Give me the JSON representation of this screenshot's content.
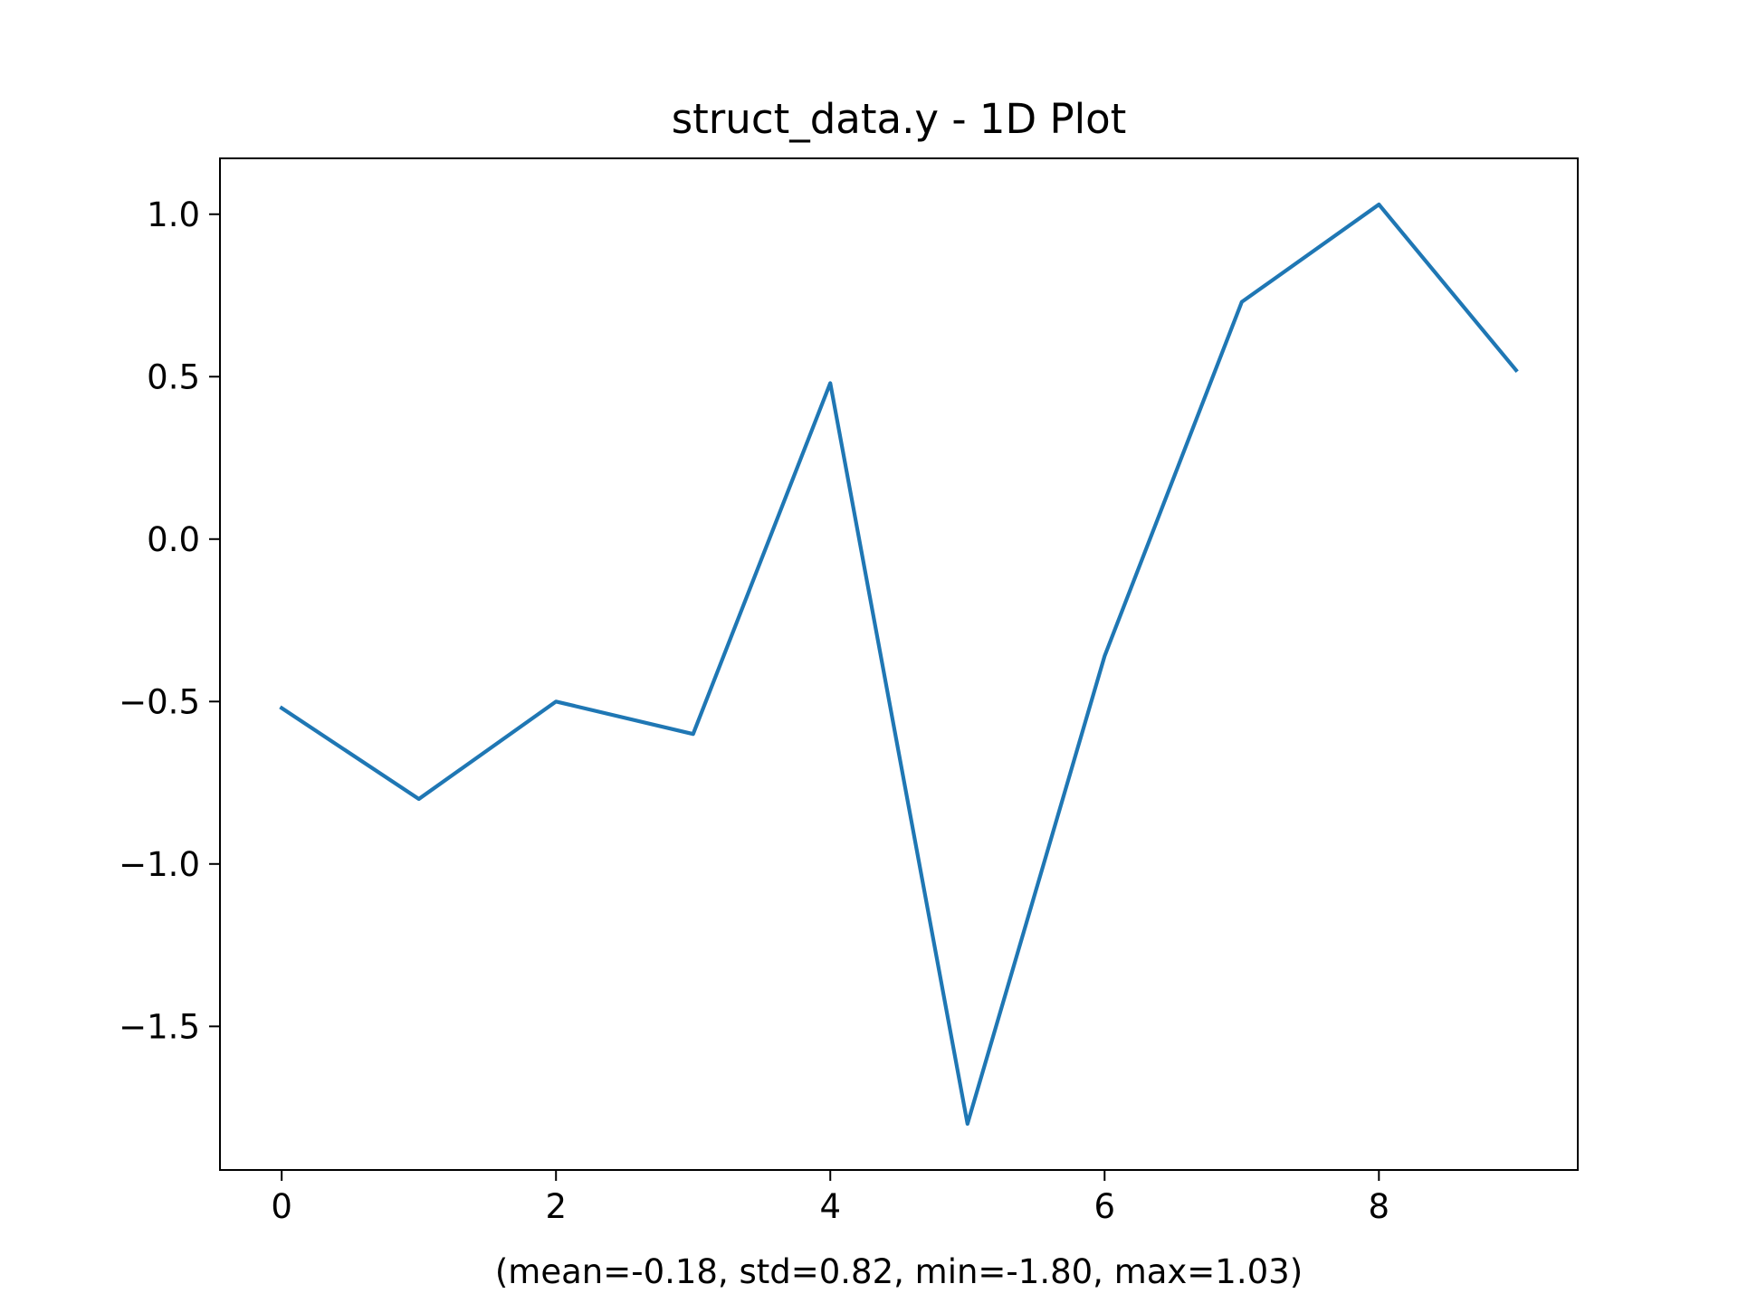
{
  "chart_data": {
    "type": "line",
    "title": "struct_data.y - 1D Plot",
    "xlabel": "(mean=-0.18, std=0.82, min=-1.80, max=1.03)",
    "ylabel": "",
    "x": [
      0,
      1,
      2,
      3,
      4,
      5,
      6,
      7,
      8,
      9
    ],
    "series": [
      {
        "values": [
          -0.52,
          -0.8,
          -0.5,
          -0.6,
          0.48,
          -1.8,
          -0.36,
          0.73,
          1.03,
          0.52
        ],
        "color": "#1f77b4"
      }
    ],
    "xlim": [
      -0.45,
      9.45
    ],
    "ylim": [
      -1.942,
      1.172
    ],
    "xticks": [
      0,
      2,
      4,
      6,
      8
    ],
    "xtick_labels": [
      "0",
      "2",
      "4",
      "6",
      "8"
    ],
    "yticks": [
      1.0,
      0.5,
      0.0,
      -0.5,
      -1.0,
      -1.5
    ],
    "ytick_labels": [
      "1.0",
      "0.5",
      "0.0",
      "−0.5",
      "−1.0",
      "−1.5"
    ],
    "grid": false,
    "legend": "none"
  }
}
